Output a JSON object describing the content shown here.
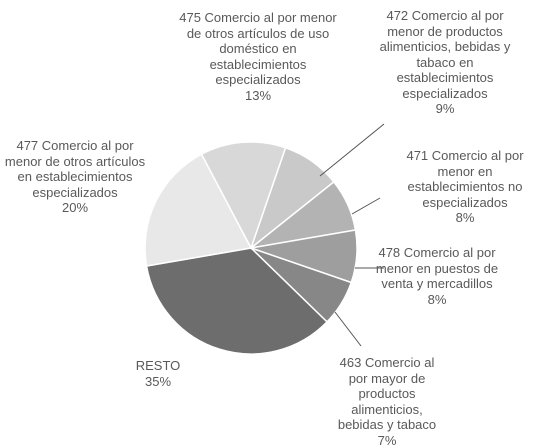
{
  "chart_data": {
    "type": "pie",
    "categories": [
      "472 Comercio al por menor de productos alimenticios, bebidas y tabaco en establecimientos especializados",
      "471 Comercio al por menor en establecimientos no especializados",
      "478 Comercio al por menor en puestos de venta y mercadillos",
      "463 Comercio al por mayor de productos alimenticios, bebidas y tabaco",
      "RESTO",
      "477 Comercio al por menor de otros artículos en establecimientos especializados",
      "475 Comercio al por menor de otros artículos de uso doméstico en establecimientos especializados"
    ],
    "values": [
      9,
      8,
      8,
      7,
      35,
      20,
      13
    ],
    "value_labels": [
      "9%",
      "8%",
      "8%",
      "7%",
      "35%",
      "20%",
      "13%"
    ],
    "colors": [
      "#c9c9c9",
      "#b3b3b3",
      "#9e9e9e",
      "#878787",
      "#6d6d6d",
      "#e8e8e8",
      "#d8d8d8"
    ]
  }
}
